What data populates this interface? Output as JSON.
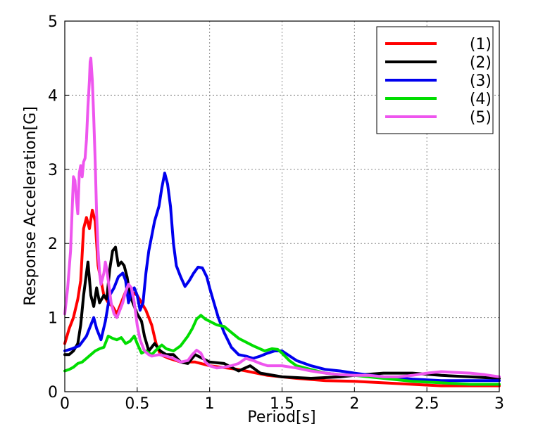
{
  "chart_data": {
    "type": "line",
    "title": "",
    "xlabel": "Period[s]",
    "ylabel": "Response Acceleration[G]",
    "xlim": [
      0,
      3
    ],
    "ylim": [
      0,
      5
    ],
    "xticks": [
      0,
      0.5,
      1,
      1.5,
      2,
      2.5,
      3
    ],
    "xtick_labels": [
      "0",
      "0.5",
      "1",
      "1.5",
      "2",
      "2.5",
      "3"
    ],
    "yticks": [
      0,
      1,
      2,
      3,
      4,
      5
    ],
    "ytick_labels": [
      "0",
      "1",
      "2",
      "3",
      "4",
      "5"
    ],
    "grid": true,
    "legend_position": "top-right",
    "series": [
      {
        "name": "(1)",
        "color": "#ff0000",
        "points": [
          [
            0,
            0.65
          ],
          [
            0.03,
            0.85
          ],
          [
            0.06,
            1.0
          ],
          [
            0.09,
            1.25
          ],
          [
            0.11,
            1.5
          ],
          [
            0.13,
            2.2
          ],
          [
            0.15,
            2.35
          ],
          [
            0.17,
            2.2
          ],
          [
            0.19,
            2.45
          ],
          [
            0.21,
            2.3
          ],
          [
            0.23,
            1.7
          ],
          [
            0.25,
            1.5
          ],
          [
            0.27,
            1.3
          ],
          [
            0.3,
            1.2
          ],
          [
            0.33,
            1.15
          ],
          [
            0.36,
            1.05
          ],
          [
            0.39,
            1.2
          ],
          [
            0.42,
            1.35
          ],
          [
            0.46,
            1.35
          ],
          [
            0.5,
            1.3
          ],
          [
            0.53,
            1.2
          ],
          [
            0.56,
            1.1
          ],
          [
            0.6,
            0.9
          ],
          [
            0.63,
            0.65
          ],
          [
            0.66,
            0.5
          ],
          [
            0.72,
            0.45
          ],
          [
            0.8,
            0.4
          ],
          [
            0.9,
            0.4
          ],
          [
            1.0,
            0.35
          ],
          [
            1.2,
            0.3
          ],
          [
            1.4,
            0.22
          ],
          [
            1.6,
            0.18
          ],
          [
            1.8,
            0.15
          ],
          [
            2.0,
            0.14
          ],
          [
            2.2,
            0.12
          ],
          [
            2.4,
            0.1
          ],
          [
            2.6,
            0.08
          ],
          [
            2.8,
            0.08
          ],
          [
            3.0,
            0.08
          ]
        ]
      },
      {
        "name": "(2)",
        "color": "#000000",
        "points": [
          [
            0,
            0.5
          ],
          [
            0.03,
            0.5
          ],
          [
            0.06,
            0.55
          ],
          [
            0.09,
            0.65
          ],
          [
            0.11,
            0.9
          ],
          [
            0.13,
            1.3
          ],
          [
            0.15,
            1.6
          ],
          [
            0.16,
            1.75
          ],
          [
            0.18,
            1.3
          ],
          [
            0.2,
            1.15
          ],
          [
            0.22,
            1.4
          ],
          [
            0.24,
            1.2
          ],
          [
            0.27,
            1.3
          ],
          [
            0.29,
            1.25
          ],
          [
            0.31,
            1.65
          ],
          [
            0.33,
            1.9
          ],
          [
            0.35,
            1.95
          ],
          [
            0.37,
            1.7
          ],
          [
            0.39,
            1.75
          ],
          [
            0.41,
            1.7
          ],
          [
            0.43,
            1.55
          ],
          [
            0.45,
            1.3
          ],
          [
            0.48,
            1.15
          ],
          [
            0.5,
            1.05
          ],
          [
            0.53,
            0.95
          ],
          [
            0.55,
            0.75
          ],
          [
            0.58,
            0.55
          ],
          [
            0.62,
            0.65
          ],
          [
            0.66,
            0.55
          ],
          [
            0.7,
            0.5
          ],
          [
            0.75,
            0.5
          ],
          [
            0.8,
            0.4
          ],
          [
            0.85,
            0.38
          ],
          [
            0.9,
            0.5
          ],
          [
            0.95,
            0.45
          ],
          [
            1.0,
            0.4
          ],
          [
            1.1,
            0.38
          ],
          [
            1.2,
            0.28
          ],
          [
            1.28,
            0.35
          ],
          [
            1.35,
            0.25
          ],
          [
            1.5,
            0.2
          ],
          [
            1.7,
            0.18
          ],
          [
            1.9,
            0.2
          ],
          [
            2.0,
            0.22
          ],
          [
            2.2,
            0.25
          ],
          [
            2.4,
            0.25
          ],
          [
            2.6,
            0.22
          ],
          [
            2.8,
            0.2
          ],
          [
            3.0,
            0.18
          ]
        ]
      },
      {
        "name": "(3)",
        "color": "#0000ee",
        "points": [
          [
            0,
            0.55
          ],
          [
            0.05,
            0.58
          ],
          [
            0.1,
            0.62
          ],
          [
            0.15,
            0.75
          ],
          [
            0.18,
            0.9
          ],
          [
            0.2,
            1.0
          ],
          [
            0.22,
            0.85
          ],
          [
            0.25,
            0.7
          ],
          [
            0.28,
            0.95
          ],
          [
            0.31,
            1.3
          ],
          [
            0.34,
            1.4
          ],
          [
            0.37,
            1.55
          ],
          [
            0.4,
            1.6
          ],
          [
            0.42,
            1.5
          ],
          [
            0.44,
            1.2
          ],
          [
            0.46,
            1.35
          ],
          [
            0.48,
            1.4
          ],
          [
            0.5,
            1.3
          ],
          [
            0.52,
            1.1
          ],
          [
            0.54,
            1.2
          ],
          [
            0.56,
            1.6
          ],
          [
            0.58,
            1.9
          ],
          [
            0.6,
            2.1
          ],
          [
            0.62,
            2.3
          ],
          [
            0.65,
            2.5
          ],
          [
            0.67,
            2.75
          ],
          [
            0.69,
            2.95
          ],
          [
            0.71,
            2.8
          ],
          [
            0.73,
            2.5
          ],
          [
            0.75,
            2.0
          ],
          [
            0.77,
            1.7
          ],
          [
            0.8,
            1.55
          ],
          [
            0.83,
            1.42
          ],
          [
            0.86,
            1.5
          ],
          [
            0.89,
            1.6
          ],
          [
            0.92,
            1.68
          ],
          [
            0.95,
            1.67
          ],
          [
            0.98,
            1.55
          ],
          [
            1.0,
            1.4
          ],
          [
            1.03,
            1.2
          ],
          [
            1.06,
            1.0
          ],
          [
            1.1,
            0.8
          ],
          [
            1.15,
            0.6
          ],
          [
            1.2,
            0.5
          ],
          [
            1.25,
            0.48
          ],
          [
            1.3,
            0.45
          ],
          [
            1.35,
            0.48
          ],
          [
            1.4,
            0.52
          ],
          [
            1.45,
            0.55
          ],
          [
            1.5,
            0.55
          ],
          [
            1.6,
            0.42
          ],
          [
            1.7,
            0.35
          ],
          [
            1.8,
            0.3
          ],
          [
            1.9,
            0.28
          ],
          [
            2.0,
            0.25
          ],
          [
            2.2,
            0.2
          ],
          [
            2.4,
            0.17
          ],
          [
            2.6,
            0.15
          ],
          [
            2.8,
            0.15
          ],
          [
            3.0,
            0.15
          ]
        ]
      },
      {
        "name": "(4)",
        "color": "#00dd00",
        "points": [
          [
            0,
            0.28
          ],
          [
            0.03,
            0.3
          ],
          [
            0.06,
            0.33
          ],
          [
            0.09,
            0.38
          ],
          [
            0.12,
            0.4
          ],
          [
            0.15,
            0.45
          ],
          [
            0.18,
            0.5
          ],
          [
            0.21,
            0.55
          ],
          [
            0.24,
            0.58
          ],
          [
            0.27,
            0.6
          ],
          [
            0.3,
            0.75
          ],
          [
            0.33,
            0.72
          ],
          [
            0.36,
            0.7
          ],
          [
            0.39,
            0.73
          ],
          [
            0.42,
            0.65
          ],
          [
            0.45,
            0.68
          ],
          [
            0.48,
            0.75
          ],
          [
            0.5,
            0.65
          ],
          [
            0.53,
            0.52
          ],
          [
            0.56,
            0.55
          ],
          [
            0.6,
            0.5
          ],
          [
            0.64,
            0.58
          ],
          [
            0.67,
            0.63
          ],
          [
            0.7,
            0.58
          ],
          [
            0.75,
            0.55
          ],
          [
            0.8,
            0.62
          ],
          [
            0.85,
            0.75
          ],
          [
            0.88,
            0.85
          ],
          [
            0.91,
            0.98
          ],
          [
            0.94,
            1.03
          ],
          [
            0.97,
            0.98
          ],
          [
            1.0,
            0.95
          ],
          [
            1.05,
            0.9
          ],
          [
            1.1,
            0.88
          ],
          [
            1.15,
            0.8
          ],
          [
            1.2,
            0.72
          ],
          [
            1.3,
            0.62
          ],
          [
            1.38,
            0.55
          ],
          [
            1.43,
            0.58
          ],
          [
            1.47,
            0.57
          ],
          [
            1.5,
            0.52
          ],
          [
            1.55,
            0.42
          ],
          [
            1.6,
            0.35
          ],
          [
            1.7,
            0.3
          ],
          [
            1.8,
            0.25
          ],
          [
            1.9,
            0.23
          ],
          [
            2.0,
            0.22
          ],
          [
            2.1,
            0.2
          ],
          [
            2.2,
            0.18
          ],
          [
            2.4,
            0.14
          ],
          [
            2.6,
            0.12
          ],
          [
            2.8,
            0.1
          ],
          [
            3.0,
            0.1
          ]
        ]
      },
      {
        "name": "(5)",
        "color": "#ee55ee",
        "points": [
          [
            0,
            1.05
          ],
          [
            0.02,
            1.4
          ],
          [
            0.04,
            1.9
          ],
          [
            0.06,
            2.9
          ],
          [
            0.07,
            2.85
          ],
          [
            0.08,
            2.6
          ],
          [
            0.09,
            2.4
          ],
          [
            0.1,
            2.95
          ],
          [
            0.11,
            3.05
          ],
          [
            0.12,
            2.9
          ],
          [
            0.13,
            3.1
          ],
          [
            0.14,
            3.15
          ],
          [
            0.15,
            3.4
          ],
          [
            0.16,
            3.85
          ],
          [
            0.17,
            4.2
          ],
          [
            0.175,
            4.45
          ],
          [
            0.18,
            4.5
          ],
          [
            0.19,
            4.2
          ],
          [
            0.2,
            3.7
          ],
          [
            0.21,
            3.1
          ],
          [
            0.22,
            2.4
          ],
          [
            0.23,
            1.9
          ],
          [
            0.24,
            1.6
          ],
          [
            0.25,
            1.45
          ],
          [
            0.27,
            1.6
          ],
          [
            0.28,
            1.75
          ],
          [
            0.29,
            1.65
          ],
          [
            0.3,
            1.5
          ],
          [
            0.32,
            1.2
          ],
          [
            0.34,
            1.05
          ],
          [
            0.36,
            1.0
          ],
          [
            0.38,
            1.1
          ],
          [
            0.4,
            1.2
          ],
          [
            0.42,
            1.35
          ],
          [
            0.44,
            1.45
          ],
          [
            0.46,
            1.4
          ],
          [
            0.48,
            1.2
          ],
          [
            0.5,
            0.9
          ],
          [
            0.52,
            0.7
          ],
          [
            0.55,
            0.55
          ],
          [
            0.58,
            0.5
          ],
          [
            0.6,
            0.48
          ],
          [
            0.65,
            0.5
          ],
          [
            0.7,
            0.48
          ],
          [
            0.75,
            0.45
          ],
          [
            0.8,
            0.4
          ],
          [
            0.85,
            0.42
          ],
          [
            0.88,
            0.5
          ],
          [
            0.91,
            0.56
          ],
          [
            0.94,
            0.52
          ],
          [
            0.97,
            0.4
          ],
          [
            1.0,
            0.35
          ],
          [
            1.05,
            0.32
          ],
          [
            1.1,
            0.33
          ],
          [
            1.15,
            0.35
          ],
          [
            1.2,
            0.38
          ],
          [
            1.25,
            0.45
          ],
          [
            1.3,
            0.42
          ],
          [
            1.35,
            0.38
          ],
          [
            1.4,
            0.35
          ],
          [
            1.5,
            0.35
          ],
          [
            1.6,
            0.32
          ],
          [
            1.7,
            0.28
          ],
          [
            1.8,
            0.25
          ],
          [
            1.9,
            0.23
          ],
          [
            2.0,
            0.22
          ],
          [
            2.1,
            0.22
          ],
          [
            2.2,
            0.2
          ],
          [
            2.3,
            0.2
          ],
          [
            2.4,
            0.22
          ],
          [
            2.5,
            0.25
          ],
          [
            2.6,
            0.27
          ],
          [
            2.7,
            0.26
          ],
          [
            2.8,
            0.25
          ],
          [
            2.9,
            0.23
          ],
          [
            3.0,
            0.2
          ]
        ]
      }
    ]
  }
}
